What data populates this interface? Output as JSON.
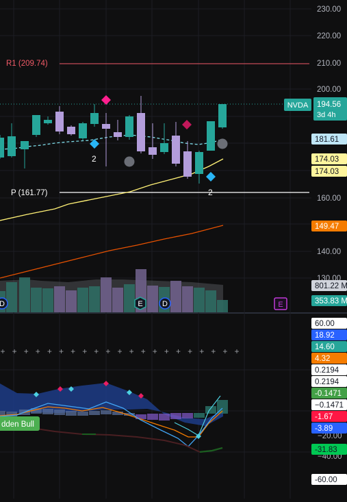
{
  "symbol": {
    "ticker": "NVDA",
    "price": "194.56",
    "countdown": "3d 4h",
    "ticker_color": "#26a69a"
  },
  "price_axis": {
    "ticks": [
      "230.00",
      "220.00",
      "210.00",
      "200.00",
      "160.00",
      "140.00",
      "130.00"
    ]
  },
  "levels": {
    "r1_label": "R1 (209.74)",
    "p_label": "P (161.77)"
  },
  "price_badges": [
    {
      "id": "ma-short",
      "text": "181.61",
      "bg": "#bfe6f7",
      "fg": "#131722"
    },
    {
      "id": "ma-yellow-1",
      "text": "174.03",
      "bg": "#fff59d",
      "fg": "#131722"
    },
    {
      "id": "ma-yellow-2",
      "text": "174.03",
      "bg": "#fff59d",
      "fg": "#131722"
    },
    {
      "id": "ma-orange",
      "text": "149.47",
      "bg": "#f57c00",
      "fg": "#ffffff"
    },
    {
      "id": "vol-ma",
      "text": "801.22 M",
      "bg": "#d1d4dc",
      "fg": "#131722"
    },
    {
      "id": "vol",
      "text": "353.83 M",
      "bg": "#26a69a",
      "fg": "#ffffff"
    }
  ],
  "markers": {
    "signal_count_1": "2",
    "signal_count_2": "2",
    "earnings_letter": "E",
    "dividend_letter": "D"
  },
  "indicator_badges": [
    {
      "id": "osc-top",
      "text": "60.00",
      "bg": "#ffffff",
      "fg": "#131722"
    },
    {
      "id": "osc-blue",
      "text": "18.92",
      "bg": "#2962ff",
      "fg": "#ffffff"
    },
    {
      "id": "osc-teal",
      "text": "14.60",
      "bg": "#26a69a",
      "fg": "#ffffff"
    },
    {
      "id": "osc-orange",
      "text": "4.32",
      "bg": "#f57c00",
      "fg": "#ffffff"
    },
    {
      "id": "osc-white-1",
      "text": "0.2194",
      "bg": "#ffffff",
      "fg": "#131722"
    },
    {
      "id": "osc-white-2",
      "text": "0.2194",
      "bg": "#ffffff",
      "fg": "#131722"
    },
    {
      "id": "osc-green",
      "text": "-0.1471",
      "bg": "#43a047",
      "fg": "#ffffff"
    },
    {
      "id": "osc-white-3",
      "text": "−0.1471",
      "bg": "#ffffff",
      "fg": "#131722"
    },
    {
      "id": "osc-red",
      "text": "-1.67",
      "bg": "#ff1744",
      "fg": "#ffffff"
    },
    {
      "id": "osc-blue-2",
      "text": "-3.89",
      "bg": "#2962ff",
      "fg": "#ffffff"
    },
    {
      "id": "osc-green-2",
      "text": "-31.83",
      "bg": "#00c853",
      "fg": "#131722"
    },
    {
      "id": "osc-bottom",
      "text": "-60.00",
      "bg": "#ffffff",
      "fg": "#131722"
    }
  ],
  "indicator_axis": {
    "ticks": [
      "−20.00",
      "−40.00"
    ]
  },
  "hidden_bull_label": "dden Bull",
  "colors": {
    "bull": "#26a69a",
    "bear": "#b39ddb",
    "r1_line": "#f05a67",
    "pivot_line": "#ffffff",
    "ma_yellow": "#fff176",
    "ma_orange": "#e65100",
    "ma_short": "#80deea",
    "fuchsia": "#ff1f8e",
    "diamond_blue": "#29b6f6",
    "earnings": "#c03ad8"
  }
}
